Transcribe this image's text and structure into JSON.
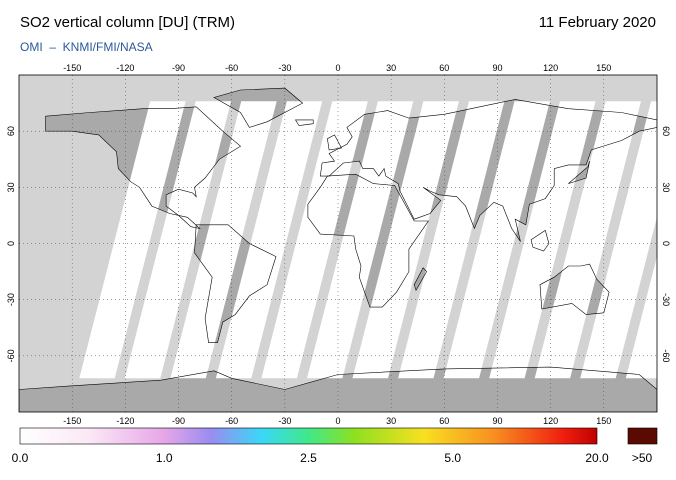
{
  "header": {
    "title": "SO2 vertical column [DU] (TRM)",
    "date": "11 February 2020",
    "subtitle": "OMI  –  KNMI/FMI/NASA"
  },
  "map": {
    "lon_ticks": [
      -150,
      -120,
      -90,
      -60,
      -30,
      0,
      30,
      60,
      90,
      120,
      150
    ],
    "lat_ticks": [
      -60,
      -30,
      0,
      30,
      60
    ]
  },
  "colorbar": {
    "labels": [
      "0.0",
      "1.0",
      "2.5",
      "5.0",
      "20.0",
      ">50"
    ]
  }
}
